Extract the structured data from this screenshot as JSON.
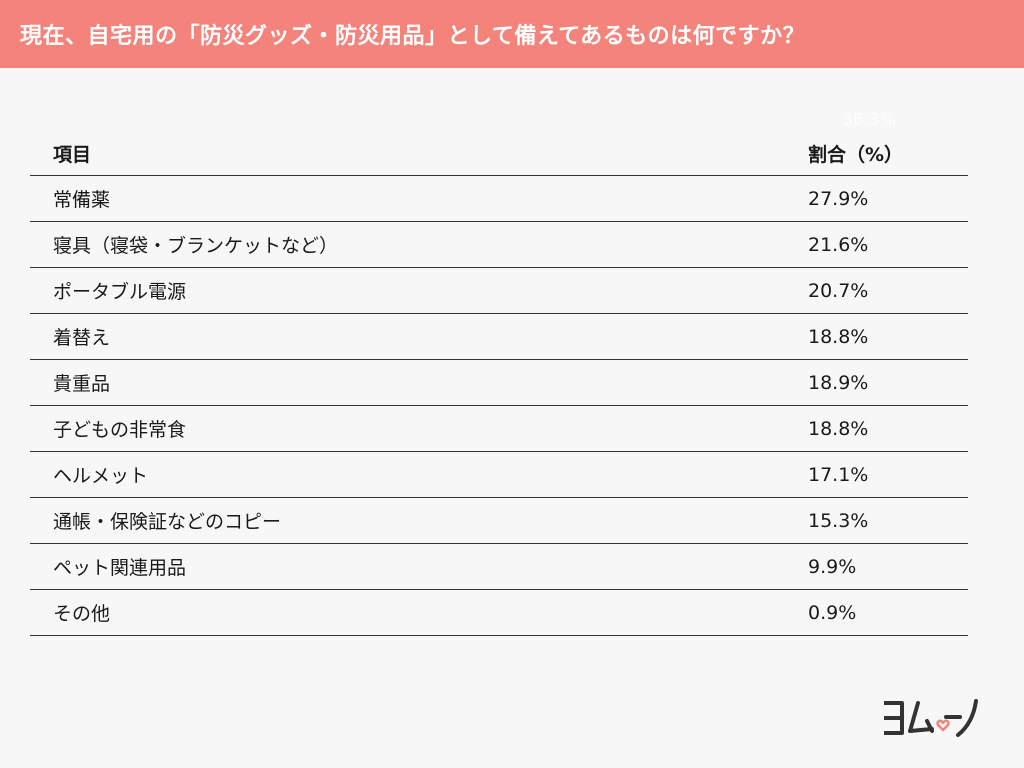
{
  "header": {
    "title": "現在、自宅用の「防災グッズ・防災用品」として備えてあるものは何ですか？"
  },
  "ghost_value": "36.3%",
  "table": {
    "columns": [
      "項目",
      "割合（%）"
    ],
    "rows": [
      {
        "item": "常備薬",
        "value": "27.9%"
      },
      {
        "item": "寝具（寝袋・ブランケットなど）",
        "value": "21.6%"
      },
      {
        "item": "ポータブル電源",
        "value": "20.7%"
      },
      {
        "item": "着替え",
        "value": "18.8%"
      },
      {
        "item": "貴重品",
        "value": "18.9%"
      },
      {
        "item": "子どもの非常食",
        "value": "18.8%"
      },
      {
        "item": "ヘルメット",
        "value": "17.1%"
      },
      {
        "item": "通帳・保険証などのコピー",
        "value": "15.3%"
      },
      {
        "item": "ペット関連用品",
        "value": "9.9%"
      },
      {
        "item": "その他",
        "value": "0.9%"
      }
    ]
  },
  "logo": {
    "text": "ヨムーノ",
    "accent_color": "#f3837b",
    "ink_color": "#333333"
  }
}
